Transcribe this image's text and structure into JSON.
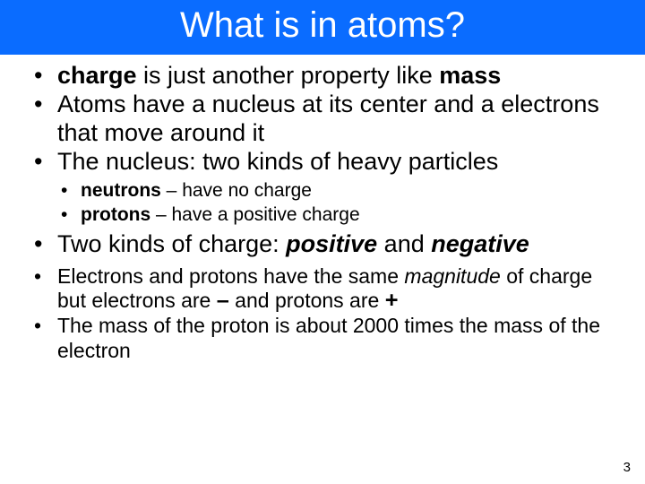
{
  "colors": {
    "title_bg": "#0a6cff",
    "title_text": "#ffffff",
    "body_bg": "#ffffff",
    "text": "#000000"
  },
  "title": "What is in atoms?",
  "page_number": "3",
  "bullets_a": {
    "b1": {
      "t1": "charge",
      "t2": " is just another property like ",
      "t3": "mass"
    },
    "b2": "Atoms have a nucleus at its center and a electrons that move around it",
    "b3": "The nucleus: two kinds of heavy particles"
  },
  "sub_a": {
    "s1": {
      "t1": "neutrons",
      "t2": " – have no charge"
    },
    "s2": {
      "t1": "protons",
      "t2": " – have a positive charge"
    }
  },
  "bullets_b": {
    "b1": {
      "t1": "Two kinds of charge: ",
      "t2": "positive",
      "t3": " and ",
      "t4": "negative"
    }
  },
  "bullets_c": {
    "b1": {
      "t1": "Electrons and protons have the same ",
      "t2": "magnitude",
      "t3": " of charge but electrons are ",
      "t4": "–",
      "t5": " and protons are ",
      "t6": "+"
    },
    "b2": "The mass of the proton is about 2000 times the mass of the electron"
  }
}
